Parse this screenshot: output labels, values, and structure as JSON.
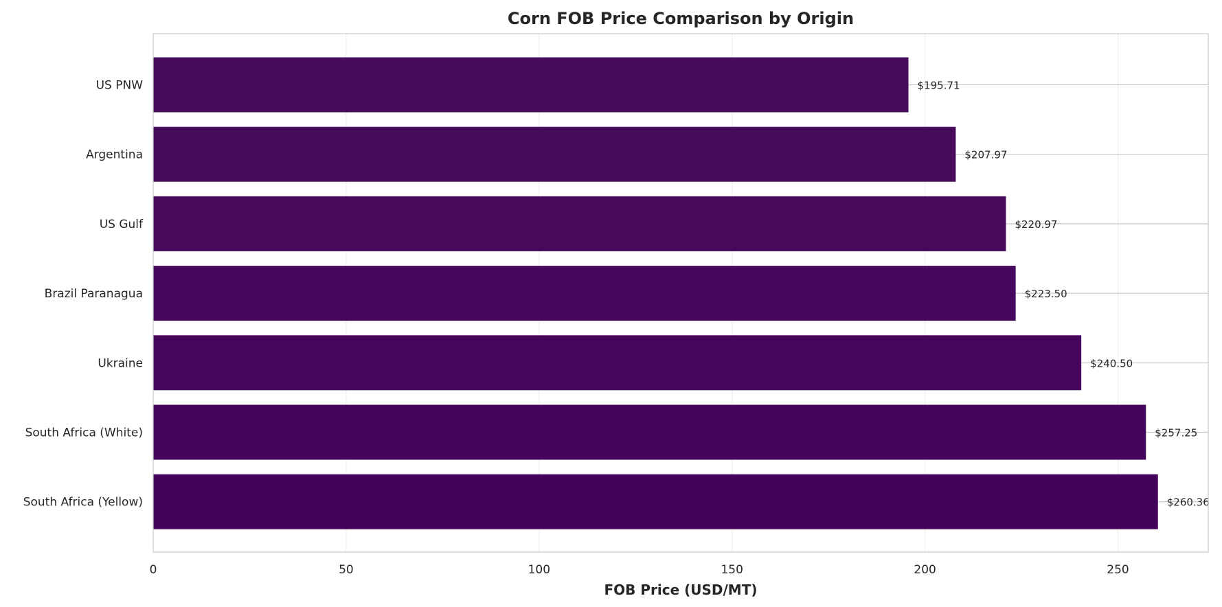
{
  "chart_data": {
    "type": "bar",
    "orientation": "horizontal",
    "title": "Corn FOB Price Comparison by Origin",
    "xlabel": "FOB Price (USD/MT)",
    "ylabel": "",
    "xlim": [
      0,
      273.4
    ],
    "xticks": [
      0,
      50,
      100,
      150,
      200,
      250
    ],
    "grid": true,
    "categories": [
      "US PNW",
      "Argentina",
      "US Gulf",
      "Brazil Paranagua",
      "Ukraine",
      "South Africa (White)",
      "South Africa (Yellow)"
    ],
    "values": [
      195.71,
      207.97,
      220.97,
      223.5,
      240.5,
      257.25,
      260.36
    ],
    "data_labels": [
      "$195.71",
      "$207.97",
      "$220.97",
      "$223.50",
      "$240.50",
      "$257.25",
      "$260.36"
    ],
    "bar_colors": [
      "#470d5a",
      "#470b5b",
      "#47095c",
      "#46085c",
      "#46065c",
      "#45045c",
      "#44015a"
    ],
    "colors": {
      "grid": "#ebebeb",
      "frame": "#cccccc",
      "text": "#262626",
      "leader": "#c8c8c8"
    }
  }
}
